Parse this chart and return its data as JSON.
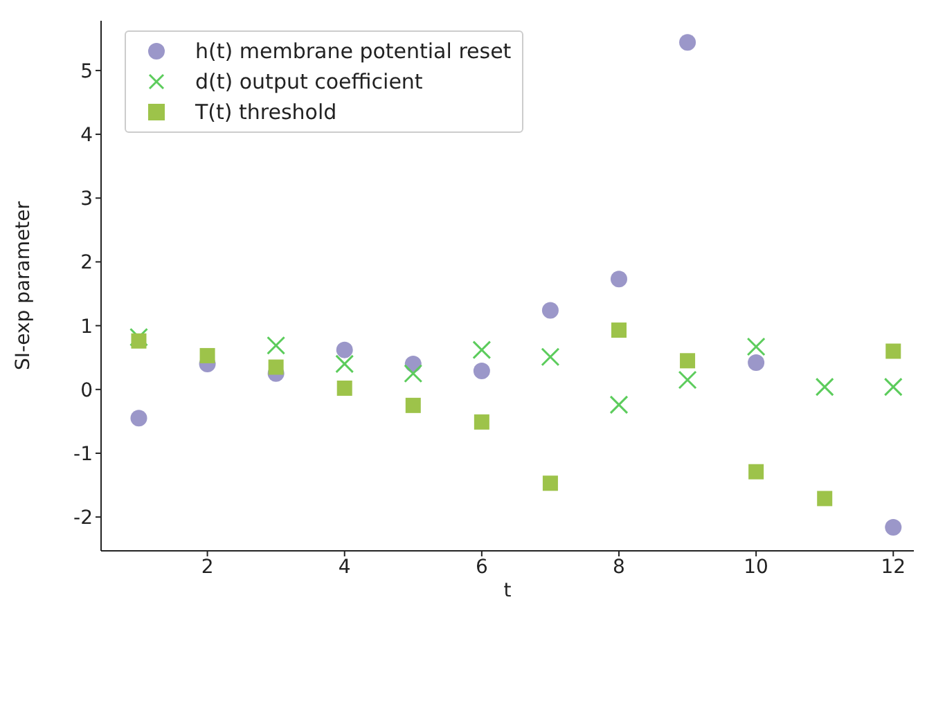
{
  "chart_data": {
    "type": "scatter",
    "xlabel": "t",
    "ylabel": "SI-exp parameter",
    "x": [
      1,
      2,
      3,
      4,
      5,
      6,
      7,
      8,
      9,
      10,
      11,
      12
    ],
    "xlim": [
      0.45,
      12.3
    ],
    "xticks": [
      2,
      4,
      6,
      8,
      10,
      12
    ],
    "ylim": [
      -2.53,
      5.78
    ],
    "yticks": [
      -2,
      -1,
      0,
      1,
      2,
      3,
      4,
      5
    ],
    "grid": false,
    "legend": "top left",
    "series": [
      {
        "name": "h(t) membrane potential reset",
        "color": "#9b97c9",
        "marker": "circle",
        "values": [
          -0.45,
          0.4,
          0.25,
          0.62,
          0.4,
          0.29,
          1.24,
          1.73,
          5.44,
          0.42,
          null,
          -2.16
        ]
      },
      {
        "name": "d(t) output coefficient",
        "color": "#5ccc5c",
        "marker": "cross",
        "values": [
          0.82,
          null,
          0.69,
          0.4,
          0.25,
          0.62,
          0.51,
          -0.24,
          0.15,
          0.67,
          0.04,
          0.04
        ]
      },
      {
        "name": "T(t) threshold",
        "color": "#9dc34a",
        "marker": "square",
        "values": [
          0.76,
          0.53,
          0.35,
          0.02,
          -0.25,
          -0.51,
          -1.47,
          0.93,
          0.45,
          -1.29,
          -1.71,
          0.6
        ]
      }
    ]
  }
}
